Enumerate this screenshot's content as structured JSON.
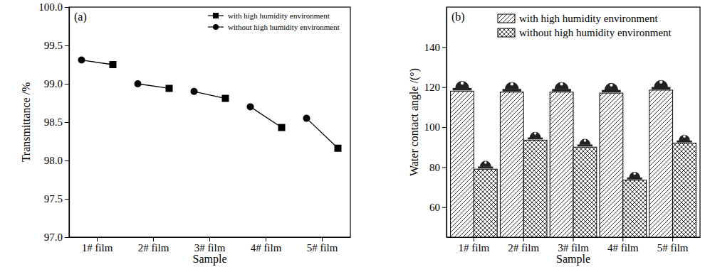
{
  "chart_data": [
    {
      "type": "dumbbell",
      "title": "(a)",
      "x_label": "Sample",
      "y_label": "Transmittance /%",
      "categories": [
        "1# film",
        "2# film",
        "3# film",
        "4# film",
        "5# film"
      ],
      "series": [
        {
          "name": "with high humidity environment",
          "color": "#000000",
          "marker": "square",
          "values": [
            99.25,
            98.94,
            98.81,
            98.43,
            98.16
          ]
        },
        {
          "name": "without high humidity environment",
          "color": "#000000",
          "marker": "circle",
          "values": [
            99.31,
            99.0,
            98.9,
            98.7,
            98.55
          ]
        }
      ],
      "ylim": [
        97,
        100
      ],
      "yticks": [
        {
          "value": 97,
          "label": "97.0"
        },
        97.5,
        {
          "value": 98,
          "label": "98.0"
        },
        98.5,
        {
          "value": 99,
          "label": "99.0"
        },
        99.5,
        {
          "value": 100,
          "label": "100.0"
        }
      ],
      "legend": "upper right",
      "line_style": "solid"
    },
    {
      "type": "bar",
      "title": "(b)",
      "x_label": "Sample",
      "y_label": "Water contact angle /(°)",
      "categories": [
        "1# film",
        "2# film",
        "3# film",
        "4# film",
        "5# film"
      ],
      "series": [
        {
          "name": "with high humidity environment",
          "color": "#000000",
          "values": [
            118,
            117.5,
            117.5,
            117,
            118.5
          ]
        },
        {
          "name": "without high humidity environment",
          "color": "#000000",
          "values": [
            79,
            93.5,
            90,
            73.5,
            92
          ]
        }
      ],
      "ylim": [
        45,
        160
      ],
      "yticks": [
        60,
        80,
        100,
        120,
        140
      ],
      "legend": "upper right"
    }
  ]
}
